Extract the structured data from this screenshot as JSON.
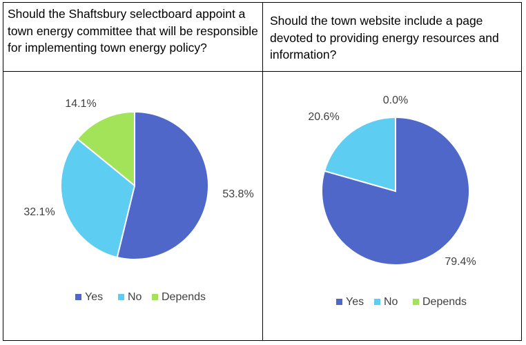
{
  "chart_data": [
    {
      "type": "pie",
      "title": "Should the Shaftsbury selectboard appoint a town energy committee that will be responsible for implementing town energy policy?",
      "categories": [
        "Yes",
        "No",
        "Depends"
      ],
      "values": [
        53.8,
        32.1,
        14.1
      ],
      "labels": [
        "53.8%",
        "32.1%",
        "14.1%"
      ],
      "colors": [
        "#4f67c8",
        "#5ecdf2",
        "#a3e35a"
      ],
      "legend": "bottom"
    },
    {
      "type": "pie",
      "title": "Should the town website include a page devoted to providing energy resources and information?",
      "categories": [
        "Yes",
        "No",
        "Depends"
      ],
      "values": [
        79.4,
        20.6,
        0.0
      ],
      "labels": [
        "79.4%",
        "20.6%",
        "0.0%"
      ],
      "colors": [
        "#4f67c8",
        "#5ecdf2",
        "#a3e35a"
      ],
      "legend": "bottom"
    }
  ]
}
